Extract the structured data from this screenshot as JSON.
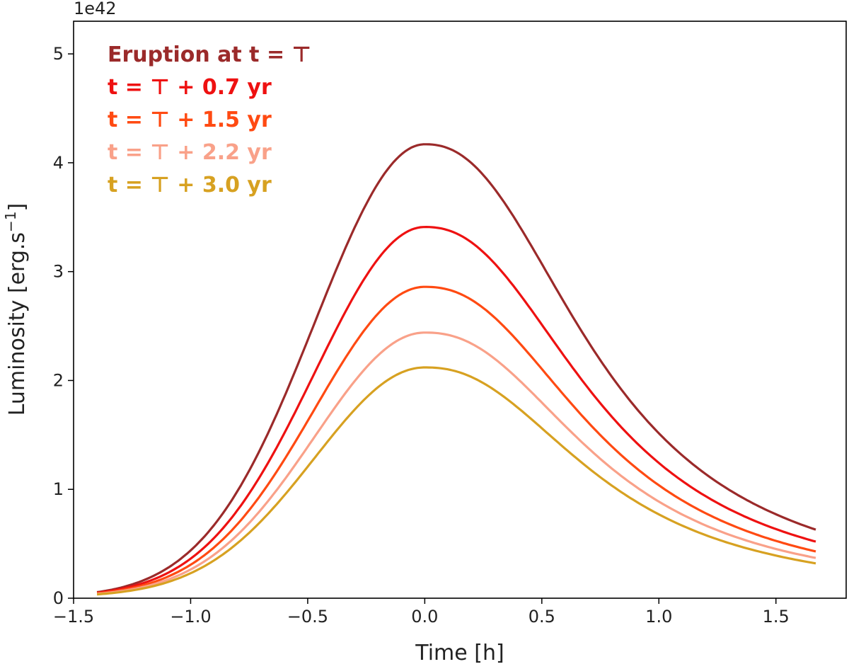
{
  "chart_data": {
    "type": "line",
    "xlabel": "Time [h]",
    "ylabel": "Luminosity [erg.s$^{-1}$]",
    "ylabel_display": "Luminosity [erg.s",
    "ylabel_sup": "−1",
    "ylabel_tail": "]",
    "y_offset_text": "1e42",
    "xlim": [
      -1.5,
      1.8
    ],
    "ylim": [
      0,
      5.3
    ],
    "x_ticks": [
      -1.5,
      -1.0,
      -0.5,
      0.0,
      0.5,
      1.0,
      1.5
    ],
    "x_tick_labels": [
      "−1.5",
      "−1.0",
      "−0.5",
      "0.0",
      "0.5",
      "1.0",
      "1.5"
    ],
    "y_ticks": [
      0,
      1,
      2,
      3,
      4,
      5
    ],
    "y_tick_labels": [
      "0",
      "1",
      "2",
      "3",
      "4",
      "5"
    ],
    "grid": false,
    "legend_placement": "top-left",
    "x_range": [
      -1.4,
      1.67
    ],
    "series": [
      {
        "name": "Eruption at t = ⊤",
        "color": "#9b2a2a",
        "peak": 4.17,
        "start": 0.055,
        "end": 0.63
      },
      {
        "name": "t = ⊤ + 0.7 yr",
        "color": "#ee1111",
        "peak": 3.41,
        "start": 0.05,
        "end": 0.52
      },
      {
        "name": "t = ⊤ + 1.5 yr",
        "color": "#ff4a12",
        "peak": 2.86,
        "start": 0.045,
        "end": 0.43
      },
      {
        "name": "t = ⊤ + 2.2 yr",
        "color": "#f9a189",
        "peak": 2.44,
        "start": 0.04,
        "end": 0.37
      },
      {
        "name": "t = ⊤ + 3.0 yr",
        "color": "#d7a121",
        "peak": 2.12,
        "start": 0.035,
        "end": 0.32
      }
    ]
  }
}
